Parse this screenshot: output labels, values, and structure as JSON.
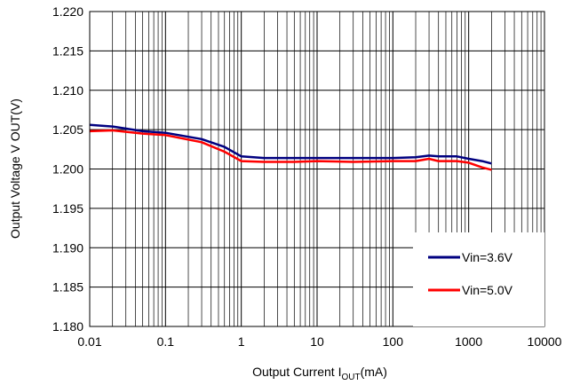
{
  "chart_data": {
    "type": "line",
    "title": "",
    "xlabel_main": "Output Current I",
    "xlabel_sub": "OUT",
    "xlabel_unit": "(mA)",
    "ylabel": "Output Voltage V OUT(V)",
    "x_scale": "log",
    "xlim": [
      0.01,
      10000
    ],
    "ylim": [
      1.18,
      1.22
    ],
    "x_ticks": [
      "0.01",
      "0.1",
      "1",
      "10",
      "100",
      "1000",
      "10000"
    ],
    "y_ticks": [
      "1.180",
      "1.185",
      "1.190",
      "1.195",
      "1.200",
      "1.205",
      "1.210",
      "1.215",
      "1.220"
    ],
    "grid": true,
    "legend_position": "bottom-right",
    "series": [
      {
        "name": "Vin=3.6V",
        "color": "#000080",
        "x": [
          0.01,
          0.02,
          0.05,
          0.1,
          0.3,
          0.6,
          1,
          2,
          5,
          10,
          30,
          100,
          200,
          300,
          400,
          500,
          700,
          1000,
          1500,
          2000
        ],
        "y": [
          1.2056,
          1.2054,
          1.2048,
          1.2046,
          1.2038,
          1.2028,
          1.2016,
          1.2014,
          1.2014,
          1.2014,
          1.2014,
          1.2014,
          1.2015,
          1.2017,
          1.2016,
          1.2016,
          1.2016,
          1.2013,
          1.201,
          1.2007
        ]
      },
      {
        "name": "Vin=5.0V",
        "color": "#ff0000",
        "x": [
          0.01,
          0.02,
          0.05,
          0.1,
          0.3,
          0.6,
          1,
          2,
          5,
          10,
          30,
          100,
          200,
          300,
          400,
          500,
          700,
          1000,
          1500,
          2000
        ],
        "y": [
          1.2048,
          1.2049,
          1.2045,
          1.2043,
          1.2034,
          1.2022,
          1.201,
          1.2009,
          1.2009,
          1.201,
          1.2009,
          1.201,
          1.201,
          1.2013,
          1.201,
          1.201,
          1.201,
          1.2008,
          1.2002,
          1.1999
        ]
      }
    ]
  }
}
